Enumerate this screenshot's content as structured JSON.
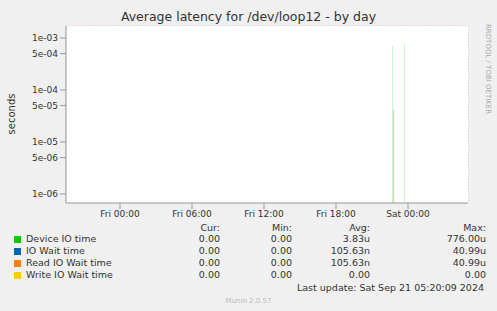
{
  "chart_data": {
    "type": "bar",
    "title": "Average latency for /dev/loop12 - by day",
    "y_label": "seconds",
    "log": "y",
    "grid": true,
    "x": [
      22.75,
      22.83,
      23.75
    ],
    "xlim": [
      -4.5,
      29
    ],
    "xticks": [
      {
        "value": 0,
        "label": "Fri 00:00"
      },
      {
        "value": 6,
        "label": "Fri 06:00"
      },
      {
        "value": 12,
        "label": "Fri 12:00"
      },
      {
        "value": 18,
        "label": "Fri 18:00"
      },
      {
        "value": 24,
        "label": "Sat 00:00"
      }
    ],
    "ylim": [
      6.7e-07,
      0.0017
    ],
    "yticks": [
      {
        "value": 1e-06,
        "label": "1e-06"
      },
      {
        "value": 5e-06,
        "label": "5e-06"
      },
      {
        "value": 1e-05,
        "label": "1e-05"
      },
      {
        "value": 5e-05,
        "label": "5e-05"
      },
      {
        "value": 0.0001,
        "label": "1e-04"
      },
      {
        "value": 0.0005,
        "label": "5e-04"
      },
      {
        "value": 0.001,
        "label": "1e-03"
      }
    ],
    "columns": [
      "Cur:",
      "Min:",
      "Avg:",
      "Max:"
    ],
    "series": [
      {
        "name": "Device IO time",
        "color": "#00cc00",
        "values": [
          0.0007,
          null,
          0.000776
        ],
        "cur": "0.00",
        "min": "0.00",
        "avg": "3.83u",
        "max": "776.00u"
      },
      {
        "name": "IO Wait time",
        "color": "#0066b3",
        "values": [
          null,
          4.099e-05,
          null
        ],
        "cur": "0.00",
        "min": "0.00",
        "avg": "105.63n",
        "max": "40.99u"
      },
      {
        "name": "Read IO Wait time",
        "color": "#ff8000",
        "values": [
          null,
          4.099e-05,
          null
        ],
        "cur": "0.00",
        "min": "0.00",
        "avg": "105.63n",
        "max": "40.99u"
      },
      {
        "name": "Write IO Wait time",
        "color": "#ffcc00",
        "values": [
          null,
          null,
          null
        ],
        "cur": "0.00",
        "min": "0.00",
        "avg": "0.00",
        "max": "0.00"
      }
    ],
    "footer": "Last update: Sat Sep 21 05:20:09 2024",
    "credit": "Munin 2.0.57",
    "watermark": "RRDTOOL / TOBI OETIKER"
  }
}
